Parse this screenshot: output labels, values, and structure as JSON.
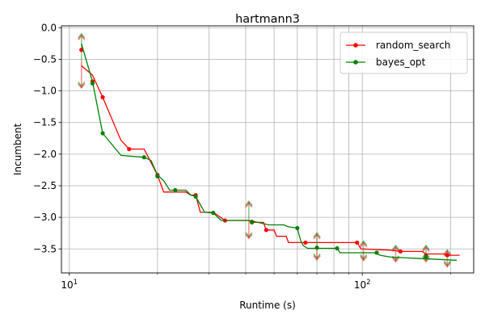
{
  "chart_data": {
    "type": "line",
    "title": "hartmann3",
    "xlabel": "Runtime (s)",
    "ylabel": "Incumbent",
    "xscale": "log",
    "xlim": [
      9.4,
      240
    ],
    "ylim": [
      -3.88,
      0.03
    ],
    "grid": true,
    "legend_position": "top-right",
    "x_major_ticks": [
      10,
      100
    ],
    "x_major_tick_labels": [
      "10^1",
      "10^2"
    ],
    "x_minor_ticks": [
      20,
      30,
      40,
      50,
      60,
      70,
      80,
      90,
      200
    ],
    "y_ticks": [
      0.0,
      -0.5,
      -1.0,
      -1.5,
      -2.0,
      -2.5,
      -3.0,
      -3.5
    ],
    "y_tick_labels": [
      "0.0",
      "−0.5",
      "−1.0",
      "−1.5",
      "−2.0",
      "−2.5",
      "−3.0",
      "−3.5"
    ],
    "series": [
      {
        "name": "random_search",
        "color": "#ff0000",
        "marker": "circle",
        "line": [
          [
            11,
            -0.6
          ],
          [
            12,
            -0.75
          ],
          [
            13,
            -1.1
          ],
          [
            15,
            -1.78
          ],
          [
            16,
            -1.92
          ],
          [
            18,
            -1.92
          ],
          [
            20,
            -2.33
          ],
          [
            21,
            -2.6
          ],
          [
            25,
            -2.6
          ],
          [
            26,
            -2.65
          ],
          [
            27,
            -2.65
          ],
          [
            28,
            -2.92
          ],
          [
            31,
            -2.92
          ],
          [
            34,
            -3.05
          ],
          [
            41,
            -3.05
          ],
          [
            42,
            -3.08
          ],
          [
            46,
            -3.08
          ],
          [
            47,
            -3.2
          ],
          [
            50,
            -3.2
          ],
          [
            51,
            -3.3
          ],
          [
            55,
            -3.3
          ],
          [
            56,
            -3.4
          ],
          [
            60,
            -3.4
          ],
          [
            64,
            -3.4
          ],
          [
            96,
            -3.4
          ],
          [
            99,
            -3.5
          ],
          [
            125,
            -3.52
          ],
          [
            135,
            -3.54
          ],
          [
            160,
            -3.54
          ],
          [
            165,
            -3.58
          ],
          [
            190,
            -3.58
          ],
          [
            195,
            -3.6
          ],
          [
            215,
            -3.6
          ]
        ],
        "markers": [
          [
            11,
            -0.35
          ],
          [
            12,
            -0.85
          ],
          [
            13,
            -1.1
          ],
          [
            16,
            -1.92
          ],
          [
            20,
            -2.33
          ],
          [
            27,
            -2.65
          ],
          [
            34,
            -3.05
          ],
          [
            42,
            -3.07
          ],
          [
            47,
            -3.2
          ],
          [
            64,
            -3.4
          ],
          [
            96,
            -3.4
          ],
          [
            135,
            -3.54
          ],
          [
            165,
            -3.6
          ],
          [
            195,
            -3.6
          ]
        ]
      },
      {
        "name": "bayes_opt",
        "color": "#008000",
        "marker": "circle",
        "line": [
          [
            11,
            -0.25
          ],
          [
            12,
            -0.85
          ],
          [
            13,
            -1.67
          ],
          [
            15,
            -2.02
          ],
          [
            18,
            -2.05
          ],
          [
            19,
            -2.1
          ],
          [
            20,
            -2.33
          ],
          [
            21,
            -2.42
          ],
          [
            22,
            -2.57
          ],
          [
            25,
            -2.57
          ],
          [
            26,
            -2.65
          ],
          [
            27,
            -2.67
          ],
          [
            28,
            -2.8
          ],
          [
            29,
            -2.92
          ],
          [
            31,
            -2.93
          ],
          [
            33,
            -3.05
          ],
          [
            41,
            -3.05
          ],
          [
            44,
            -3.08
          ],
          [
            46,
            -3.1
          ],
          [
            48,
            -3.12
          ],
          [
            54,
            -3.12
          ],
          [
            56,
            -3.15
          ],
          [
            60,
            -3.17
          ],
          [
            61,
            -3.3
          ],
          [
            62,
            -3.4
          ],
          [
            63,
            -3.45
          ],
          [
            65,
            -3.49
          ],
          [
            82,
            -3.49
          ],
          [
            84,
            -3.56
          ],
          [
            110,
            -3.56
          ],
          [
            115,
            -3.6
          ],
          [
            125,
            -3.63
          ],
          [
            210,
            -3.68
          ]
        ],
        "markers": [
          [
            12,
            -0.88
          ],
          [
            13,
            -1.67
          ],
          [
            18,
            -2.05
          ],
          [
            20,
            -2.35
          ],
          [
            23,
            -2.57
          ],
          [
            27,
            -2.67
          ],
          [
            31,
            -2.93
          ],
          [
            42,
            -3.08
          ],
          [
            60,
            -3.17
          ],
          [
            70,
            -3.48
          ],
          [
            82,
            -3.49
          ],
          [
            112,
            -3.56
          ],
          [
            165,
            -3.62
          ]
        ]
      }
    ],
    "range_arrows": [
      {
        "x": 11,
        "up": -0.1,
        "down": -0.95
      },
      {
        "x": 41,
        "up": -2.75,
        "down": -3.33
      },
      {
        "x": 70,
        "up": -3.25,
        "down": -3.67
      },
      {
        "x": 101,
        "up": -3.38,
        "down": -3.68
      },
      {
        "x": 130,
        "up": -3.45,
        "down": -3.7
      },
      {
        "x": 165,
        "up": -3.45,
        "down": -3.7
      },
      {
        "x": 195,
        "up": -3.52,
        "down": -3.78
      }
    ]
  }
}
